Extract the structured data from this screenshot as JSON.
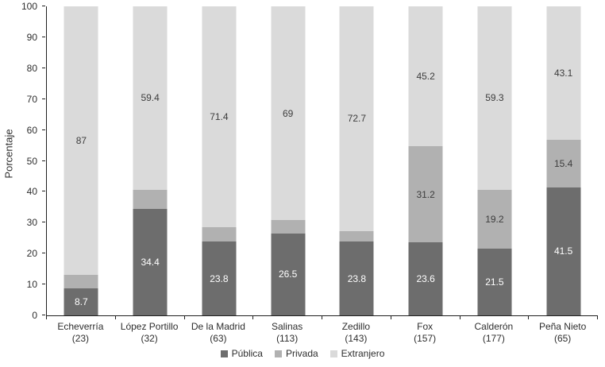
{
  "chart_data": {
    "type": "bar",
    "stacked": true,
    "title": "",
    "xlabel": "",
    "ylabel": "Porcentaje",
    "ylim": [
      0,
      100
    ],
    "yticks": [
      0,
      10,
      20,
      30,
      40,
      50,
      60,
      70,
      80,
      90,
      100
    ],
    "grid": false,
    "legend_position": "bottom",
    "categories": [
      "Echeverría",
      "López Portillo",
      "De la Madrid",
      "Salinas",
      "Zedillo",
      "Fox",
      "Calderón",
      "Peña Nieto"
    ],
    "category_counts": [
      "(23)",
      "(32)",
      "(63)",
      "(113)",
      "(143)",
      "(157)",
      "(177)",
      "(65)"
    ],
    "series": [
      {
        "name": "Pública",
        "key": "publica",
        "color": "#6d6d6d",
        "label_color": "#ffffff",
        "values": [
          8.7,
          34.4,
          23.8,
          26.5,
          23.8,
          23.6,
          21.5,
          41.5
        ]
      },
      {
        "name": "Privada",
        "key": "privada",
        "color": "#b1b1b1",
        "label_color": "#3d3d3d",
        "values": [
          4.3,
          6.3,
          4.8,
          4.4,
          3.5,
          31.2,
          19.2,
          15.4
        ]
      },
      {
        "name": "Extranjero",
        "key": "extranjero",
        "color": "#dadada",
        "label_color": "#3d3d3d",
        "values": [
          87,
          59.4,
          71.4,
          69,
          72.7,
          45.2,
          59.3,
          43.1
        ]
      }
    ],
    "legend": [
      "Pública",
      "Privada",
      "Extranjero"
    ]
  }
}
